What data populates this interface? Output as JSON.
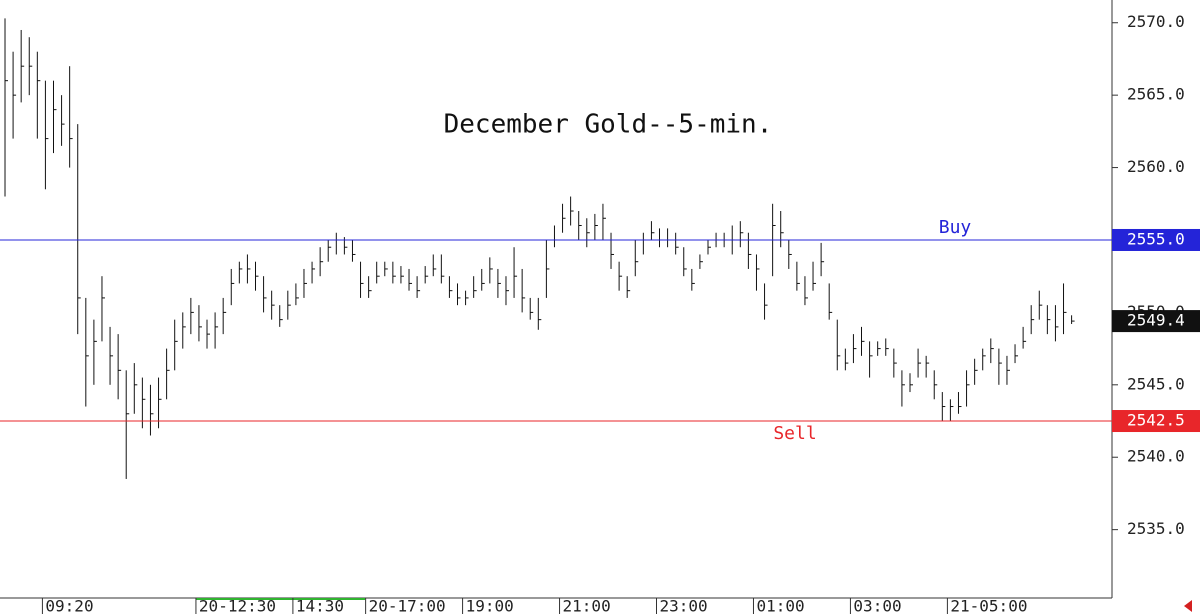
{
  "chart_data": {
    "type": "ohlc",
    "title": "December Gold--5-min.",
    "color": "#111111",
    "ylim": [
      2530.28,
      2571.57
    ],
    "yticks": [
      {
        "value": 2535,
        "label": "2535.0"
      },
      {
        "value": 2540,
        "label": "2540.0"
      },
      {
        "value": 2545,
        "label": "2545.0"
      },
      {
        "value": 2550,
        "label": "2550.0"
      },
      {
        "value": 2555,
        "label": "2555.0"
      },
      {
        "value": 2560,
        "label": "2560.0"
      },
      {
        "value": 2565,
        "label": "2565.0"
      },
      {
        "value": 2570,
        "label": "2570.0"
      }
    ],
    "xlim": [
      -0.62,
      137
    ],
    "xticks": [
      {
        "value": 5,
        "label": "09:20"
      },
      {
        "value": 24,
        "label": "20-12:30"
      },
      {
        "value": 36,
        "label": "14:30"
      },
      {
        "value": 45,
        "label": "20-17:00"
      },
      {
        "value": 57,
        "label": "19:00"
      },
      {
        "value": 69,
        "label": "21:00"
      },
      {
        "value": 81,
        "label": "23:00"
      },
      {
        "value": 93,
        "label": "01:00"
      },
      {
        "value": 105,
        "label": "03:00"
      },
      {
        "value": 117,
        "label": "21-05:00"
      }
    ],
    "high": [
      2570.3,
      2568,
      2569.5,
      2569,
      2568,
      2566,
      2566,
      2565,
      2567,
      2563,
      2551,
      2549.5,
      2552.5,
      2549,
      2548.5,
      2546,
      2546.5,
      2545.5,
      2545,
      2545.5,
      2547.5,
      2549.5,
      2550,
      2551,
      2550.5,
      2549.5,
      2550,
      2551,
      2553,
      2553.5,
      2554,
      2553.5,
      2552.5,
      2551.5,
      2550.5,
      2551.5,
      2552,
      2553,
      2553.5,
      2554.5,
      2555,
      2555.5,
      2555.2,
      2555,
      2553.5,
      2552.5,
      2553.5,
      2553.5,
      2553.5,
      2553.2,
      2553,
      2552.5,
      2553.2,
      2554,
      2554,
      2552.5,
      2552,
      2551.5,
      2552.5,
      2553,
      2553.8,
      2553,
      2552.5,
      2554.5,
      2553,
      2551,
      2551,
      2555,
      2556,
      2557.5,
      2558,
      2557,
      2556.5,
      2556.8,
      2557.5,
      2555.5,
      2553.5,
      2552.5,
      2555,
      2555.5,
      2556.3,
      2555.8,
      2555.8,
      2555.5,
      2554.5,
      2553,
      2554,
      2555,
      2555.5,
      2555.5,
      2556,
      2556.3,
      2555.5,
      2554,
      2552,
      2557.5,
      2557,
      2555,
      2553.5,
      2552.5,
      2553.5,
      2554.8,
      2552,
      2549.5,
      2547.5,
      2548.5,
      2549,
      2548,
      2548,
      2548.2,
      2547.5,
      2546,
      2545.8,
      2547.5,
      2547,
      2546,
      2544.5,
      2544,
      2544.5,
      2546,
      2546.8,
      2547.5,
      2548.2,
      2547.5,
      2547,
      2547.8,
      2549,
      2550.5,
      2551.5,
      2550.5,
      2550.5,
      2552,
      2549.8
    ],
    "low": [
      2558,
      2562,
      2564.5,
      2565,
      2562,
      2558.5,
      2561,
      2561.5,
      2560,
      2548.5,
      2543.5,
      2545,
      2548,
      2545,
      2544,
      2538.5,
      2543,
      2542,
      2541.5,
      2542,
      2544,
      2546,
      2547.5,
      2548.5,
      2548,
      2547.5,
      2547.5,
      2548.5,
      2550.5,
      2552,
      2552,
      2551.5,
      2550,
      2549.5,
      2549,
      2549.5,
      2550.5,
      2551,
      2552,
      2552.5,
      2553.5,
      2554,
      2554,
      2553.5,
      2551,
      2551,
      2552,
      2552.5,
      2552,
      2552,
      2551.5,
      2551,
      2552,
      2552.5,
      2552,
      2551,
      2550.5,
      2550.5,
      2551,
      2551.5,
      2552,
      2551,
      2550.5,
      2551,
      2550,
      2549.5,
      2548.8,
      2551,
      2554.5,
      2555.5,
      2556,
      2555,
      2554.5,
      2555,
      2555,
      2553,
      2551.5,
      2551,
      2552.5,
      2554,
      2555,
      2554.5,
      2554.5,
      2554,
      2552.5,
      2551.5,
      2553,
      2554,
      2554.5,
      2554.5,
      2554,
      2554.5,
      2553,
      2551.5,
      2549.5,
      2552.5,
      2554.5,
      2553,
      2551.5,
      2550.5,
      2551.5,
      2552.5,
      2549.5,
      2546,
      2546,
      2546.5,
      2547,
      2545.5,
      2547,
      2547,
      2545.5,
      2543.5,
      2544.5,
      2545.5,
      2545.5,
      2544,
      2542.5,
      2542.5,
      2543,
      2543.5,
      2545,
      2546,
      2546.5,
      2545,
      2545,
      2546.5,
      2547.5,
      2548.5,
      2549.5,
      2548.5,
      2548,
      2548.5,
      2549.2
    ],
    "close": [
      2566,
      2565,
      2567,
      2567,
      2566,
      2562,
      2564,
      2563,
      2562,
      2551,
      2547,
      2548,
      2551,
      2547,
      2546,
      2543,
      2545,
      2544,
      2543,
      2544,
      2546,
      2548,
      2549,
      2550,
      2549,
      2548.5,
      2549,
      2550,
      2552,
      2553,
      2553,
      2552.5,
      2551,
      2550.5,
      2549.5,
      2550.5,
      2551,
      2552,
      2553,
      2553.5,
      2554.5,
      2555,
      2554.5,
      2554,
      2552,
      2551.5,
      2552.5,
      2553,
      2552.5,
      2552.5,
      2552,
      2551.5,
      2552.5,
      2553,
      2552.5,
      2551.5,
      2551,
      2551,
      2551.5,
      2552,
      2553,
      2552,
      2551.5,
      2552.5,
      2551,
      2550,
      2549.5,
      2553,
      2555,
      2556.5,
      2557,
      2556,
      2555.5,
      2556,
      2556.5,
      2554,
      2552.5,
      2551.5,
      2553.5,
      2555,
      2555.5,
      2555,
      2555,
      2554.5,
      2553,
      2552,
      2553.5,
      2554.5,
      2555,
      2555,
      2555,
      2555.5,
      2554,
      2553,
      2550.5,
      2556,
      2555.5,
      2554,
      2552,
      2551,
      2552,
      2553.5,
      2550,
      2547,
      2546.5,
      2547.5,
      2548,
      2547,
      2547.5,
      2547.5,
      2546.5,
      2545,
      2545,
      2546.5,
      2546.5,
      2545,
      2543.5,
      2543.5,
      2543.5,
      2545,
      2546,
      2547,
      2547.5,
      2546.5,
      2546,
      2547,
      2548,
      2549.5,
      2550.5,
      2549.5,
      2549,
      2550,
      2549.4
    ],
    "levels": [
      {
        "name": "Buy",
        "value": 2555,
        "label": "2555.0",
        "color": "#2424d8"
      },
      {
        "name": "Sell",
        "value": 2542.5,
        "label": "2542.5",
        "color": "#e8262a"
      }
    ],
    "last_color": "#111111"
  }
}
